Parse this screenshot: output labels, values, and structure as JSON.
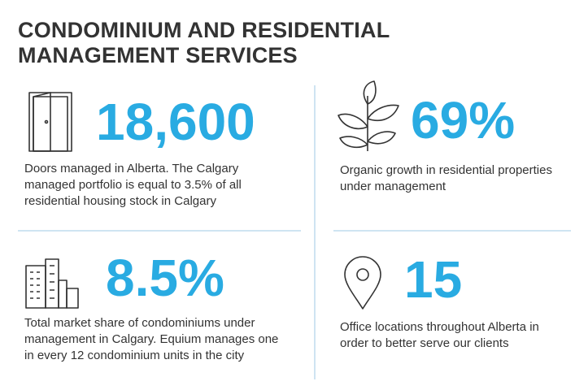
{
  "header": {
    "title_lines": [
      "CONDOMINIUM AND RESIDENTIAL",
      "MANAGEMENT SERVICES"
    ]
  },
  "stats": [
    {
      "value": "18,600",
      "description_lines": [
        "Doors managed in Alberta. The Calgary",
        "managed portfolio is equal to 3.5% of all",
        "residential housing stock in Calgary"
      ]
    },
    {
      "value": "69%",
      "description_lines": [
        "Organic growth in residential properties",
        "under management"
      ]
    },
    {
      "value": "8.5%",
      "description_lines": [
        "Total market share of condominiums under",
        "management in Calgary. Equium manages one",
        "in every 12 condominium units in the city"
      ]
    },
    {
      "value": "15",
      "description_lines": [
        "Office locations throughout Alberta in",
        "order to better serve our clients"
      ]
    }
  ]
}
